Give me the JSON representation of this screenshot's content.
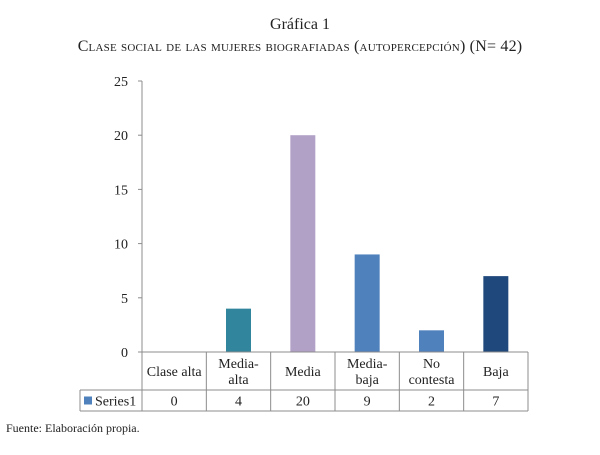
{
  "title_line1": "Gráfica 1",
  "title_line2": "Clase social de las mujeres biografiadas (autopercepción) (N= 42)",
  "source": "Fuente: Elaboración propia.",
  "chart_data": {
    "type": "bar",
    "title": "Clase social de las mujeres biografiadas (autopercepción) (N= 42)",
    "categories": [
      [
        "Clase alta"
      ],
      [
        "Media-",
        "alta"
      ],
      [
        "Media"
      ],
      [
        "Media-",
        "baja"
      ],
      [
        "No",
        "contesta"
      ],
      [
        "Baja"
      ]
    ],
    "series": [
      {
        "name": "Series1",
        "values": [
          0,
          4,
          20,
          9,
          2,
          7
        ]
      }
    ],
    "bar_colors": [
      "#4f81bd",
      "#31859c",
      "#b2a1c7",
      "#4f81bd",
      "#4f81bd",
      "#1f497d"
    ],
    "legend_color": "#4f81bd",
    "yticks": [
      0,
      5,
      10,
      15,
      20,
      25
    ],
    "ylim": [
      0,
      25
    ],
    "xlabel": "",
    "ylabel": "",
    "legend": "data-table-left",
    "data_table": true
  }
}
